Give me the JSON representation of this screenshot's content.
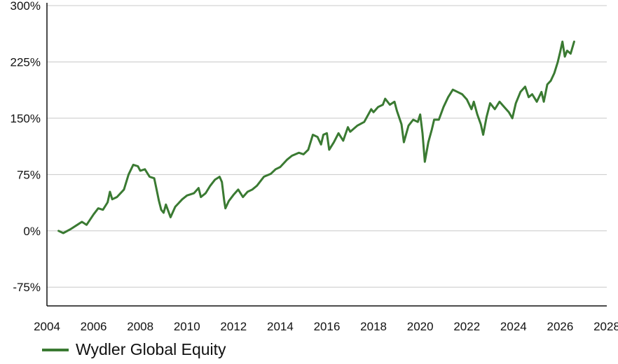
{
  "chart_data": {
    "type": "line",
    "xlim": [
      2004,
      2028
    ],
    "ylim": [
      -100,
      300
    ],
    "x_ticks": [
      2004,
      2006,
      2008,
      2010,
      2012,
      2014,
      2016,
      2018,
      2020,
      2022,
      2024,
      2026,
      2028
    ],
    "y_ticks": [
      -75,
      0,
      75,
      150,
      225,
      300
    ],
    "y_tick_suffix": "%",
    "grid": "horizontal",
    "legend_position": "bottom-left",
    "series": [
      {
        "name": "Wydler Global Equity",
        "color": "#3a7a32",
        "points": [
          [
            2004.5,
            0
          ],
          [
            2004.7,
            -3
          ],
          [
            2005.0,
            2
          ],
          [
            2005.3,
            8
          ],
          [
            2005.5,
            12
          ],
          [
            2005.7,
            8
          ],
          [
            2006.0,
            22
          ],
          [
            2006.2,
            30
          ],
          [
            2006.4,
            28
          ],
          [
            2006.6,
            38
          ],
          [
            2006.7,
            52
          ],
          [
            2006.8,
            42
          ],
          [
            2007.0,
            45
          ],
          [
            2007.3,
            55
          ],
          [
            2007.5,
            75
          ],
          [
            2007.7,
            88
          ],
          [
            2007.9,
            86
          ],
          [
            2008.0,
            80
          ],
          [
            2008.2,
            82
          ],
          [
            2008.4,
            72
          ],
          [
            2008.6,
            70
          ],
          [
            2008.7,
            55
          ],
          [
            2008.8,
            40
          ],
          [
            2008.9,
            28
          ],
          [
            2009.0,
            24
          ],
          [
            2009.1,
            35
          ],
          [
            2009.3,
            18
          ],
          [
            2009.5,
            32
          ],
          [
            2009.8,
            42
          ],
          [
            2010.0,
            47
          ],
          [
            2010.3,
            50
          ],
          [
            2010.5,
            57
          ],
          [
            2010.6,
            45
          ],
          [
            2010.8,
            50
          ],
          [
            2011.0,
            60
          ],
          [
            2011.2,
            68
          ],
          [
            2011.4,
            72
          ],
          [
            2011.5,
            65
          ],
          [
            2011.6,
            40
          ],
          [
            2011.65,
            30
          ],
          [
            2011.8,
            40
          ],
          [
            2012.0,
            48
          ],
          [
            2012.2,
            55
          ],
          [
            2012.4,
            45
          ],
          [
            2012.6,
            52
          ],
          [
            2012.8,
            55
          ],
          [
            2013.0,
            60
          ],
          [
            2013.3,
            72
          ],
          [
            2013.6,
            76
          ],
          [
            2013.8,
            82
          ],
          [
            2014.0,
            85
          ],
          [
            2014.3,
            95
          ],
          [
            2014.5,
            100
          ],
          [
            2014.8,
            104
          ],
          [
            2015.0,
            102
          ],
          [
            2015.2,
            108
          ],
          [
            2015.4,
            128
          ],
          [
            2015.6,
            125
          ],
          [
            2015.75,
            115
          ],
          [
            2015.85,
            128
          ],
          [
            2016.0,
            130
          ],
          [
            2016.1,
            108
          ],
          [
            2016.3,
            118
          ],
          [
            2016.5,
            130
          ],
          [
            2016.7,
            120
          ],
          [
            2016.9,
            138
          ],
          [
            2017.0,
            132
          ],
          [
            2017.3,
            140
          ],
          [
            2017.6,
            145
          ],
          [
            2017.9,
            162
          ],
          [
            2018.0,
            158
          ],
          [
            2018.2,
            165
          ],
          [
            2018.4,
            168
          ],
          [
            2018.5,
            176
          ],
          [
            2018.7,
            168
          ],
          [
            2018.9,
            172
          ],
          [
            2019.0,
            160
          ],
          [
            2019.2,
            142
          ],
          [
            2019.3,
            118
          ],
          [
            2019.5,
            140
          ],
          [
            2019.7,
            148
          ],
          [
            2019.9,
            145
          ],
          [
            2020.0,
            155
          ],
          [
            2020.1,
            130
          ],
          [
            2020.2,
            92
          ],
          [
            2020.35,
            118
          ],
          [
            2020.5,
            135
          ],
          [
            2020.6,
            148
          ],
          [
            2020.8,
            148
          ],
          [
            2021.0,
            165
          ],
          [
            2021.2,
            178
          ],
          [
            2021.4,
            188
          ],
          [
            2021.6,
            185
          ],
          [
            2021.8,
            182
          ],
          [
            2022.0,
            175
          ],
          [
            2022.2,
            162
          ],
          [
            2022.3,
            172
          ],
          [
            2022.45,
            155
          ],
          [
            2022.6,
            142
          ],
          [
            2022.7,
            128
          ],
          [
            2022.85,
            152
          ],
          [
            2023.0,
            170
          ],
          [
            2023.2,
            162
          ],
          [
            2023.4,
            172
          ],
          [
            2023.6,
            165
          ],
          [
            2023.8,
            158
          ],
          [
            2023.95,
            150
          ],
          [
            2024.1,
            170
          ],
          [
            2024.3,
            185
          ],
          [
            2024.5,
            192
          ],
          [
            2024.65,
            178
          ],
          [
            2024.8,
            182
          ],
          [
            2025.0,
            172
          ],
          [
            2025.2,
            185
          ],
          [
            2025.3,
            172
          ],
          [
            2025.45,
            195
          ],
          [
            2025.6,
            200
          ],
          [
            2025.75,
            210
          ],
          [
            2025.9,
            225
          ],
          [
            2026.0,
            238
          ],
          [
            2026.1,
            252
          ],
          [
            2026.2,
            232
          ],
          [
            2026.3,
            240
          ],
          [
            2026.45,
            236
          ],
          [
            2026.6,
            252
          ]
        ]
      }
    ]
  }
}
